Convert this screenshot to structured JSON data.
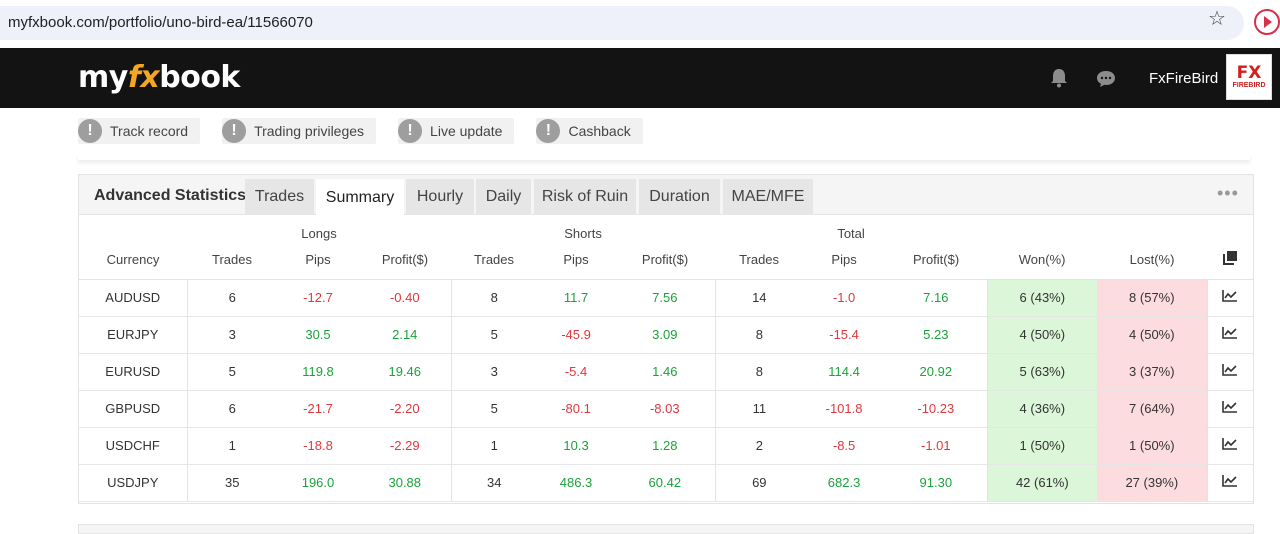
{
  "browser": {
    "url": "myfxbook.com/portfolio/uno-bird-ea/11566070",
    "star_icon": "star-icon",
    "extension_icon": "play-circle-icon"
  },
  "header": {
    "logo_part1": "my",
    "logo_part2": "fx",
    "logo_part3": "book",
    "user_name": "FxFireBird",
    "avatar_text_main": "FX",
    "avatar_text_sub": "FIREBIRD",
    "icons": [
      "bell-icon",
      "chat-icon"
    ]
  },
  "badges": [
    {
      "label": "Track record"
    },
    {
      "label": "Trading privileges"
    },
    {
      "label": "Live update"
    },
    {
      "label": "Cashback"
    }
  ],
  "badge_icon": "!",
  "panel": {
    "title": "Advanced Statistics",
    "tabs": [
      {
        "label": "Trades",
        "active": false
      },
      {
        "label": "Summary",
        "active": true
      },
      {
        "label": "Hourly",
        "active": false
      },
      {
        "label": "Daily",
        "active": false
      },
      {
        "label": "Risk of Ruin",
        "active": false
      },
      {
        "label": "Duration",
        "active": false
      },
      {
        "label": "MAE/MFE",
        "active": false
      }
    ],
    "more_icon": "•••"
  },
  "table": {
    "groups": {
      "longs": "Longs",
      "shorts": "Shorts",
      "total": "Total"
    },
    "columns": [
      "Currency",
      "Trades",
      "Pips",
      "Profit($)",
      "Trades",
      "Pips",
      "Profit($)",
      "Trades",
      "Pips",
      "Profit($)",
      "Won(%)",
      "Lost(%)"
    ],
    "rows": [
      {
        "currency": "AUDUSD",
        "l_trades": "6",
        "l_pips": "-12.7",
        "l_profit": "-0.40",
        "s_trades": "8",
        "s_pips": "11.7",
        "s_profit": "7.56",
        "t_trades": "14",
        "t_pips": "-1.0",
        "t_profit": "7.16",
        "won": "6 (43%)",
        "lost": "8 (57%)"
      },
      {
        "currency": "EURJPY",
        "l_trades": "3",
        "l_pips": "30.5",
        "l_profit": "2.14",
        "s_trades": "5",
        "s_pips": "-45.9",
        "s_profit": "3.09",
        "t_trades": "8",
        "t_pips": "-15.4",
        "t_profit": "5.23",
        "won": "4 (50%)",
        "lost": "4 (50%)"
      },
      {
        "currency": "EURUSD",
        "l_trades": "5",
        "l_pips": "119.8",
        "l_profit": "19.46",
        "s_trades": "3",
        "s_pips": "-5.4",
        "s_profit": "1.46",
        "t_trades": "8",
        "t_pips": "114.4",
        "t_profit": "20.92",
        "won": "5 (63%)",
        "lost": "3 (37%)"
      },
      {
        "currency": "GBPUSD",
        "l_trades": "6",
        "l_pips": "-21.7",
        "l_profit": "-2.20",
        "s_trades": "5",
        "s_pips": "-80.1",
        "s_profit": "-8.03",
        "t_trades": "11",
        "t_pips": "-101.8",
        "t_profit": "-10.23",
        "won": "4 (36%)",
        "lost": "7 (64%)"
      },
      {
        "currency": "USDCHF",
        "l_trades": "1",
        "l_pips": "-18.8",
        "l_profit": "-2.29",
        "s_trades": "1",
        "s_pips": "10.3",
        "s_profit": "1.28",
        "t_trades": "2",
        "t_pips": "-8.5",
        "t_profit": "-1.01",
        "won": "1 (50%)",
        "lost": "1 (50%)"
      },
      {
        "currency": "USDJPY",
        "l_trades": "35",
        "l_pips": "196.0",
        "l_profit": "30.88",
        "s_trades": "34",
        "s_pips": "486.3",
        "s_profit": "60.42",
        "t_trades": "69",
        "t_pips": "682.3",
        "t_profit": "91.30",
        "won": "42 (61%)",
        "lost": "27 (39%)"
      }
    ]
  },
  "colors": {
    "positive": "#1aa33b",
    "negative": "#e0383e",
    "won_bg": "#dbf6d8",
    "lost_bg": "#fcdcdf",
    "header_bg": "#131313",
    "logo_accent": "#f5a623"
  }
}
